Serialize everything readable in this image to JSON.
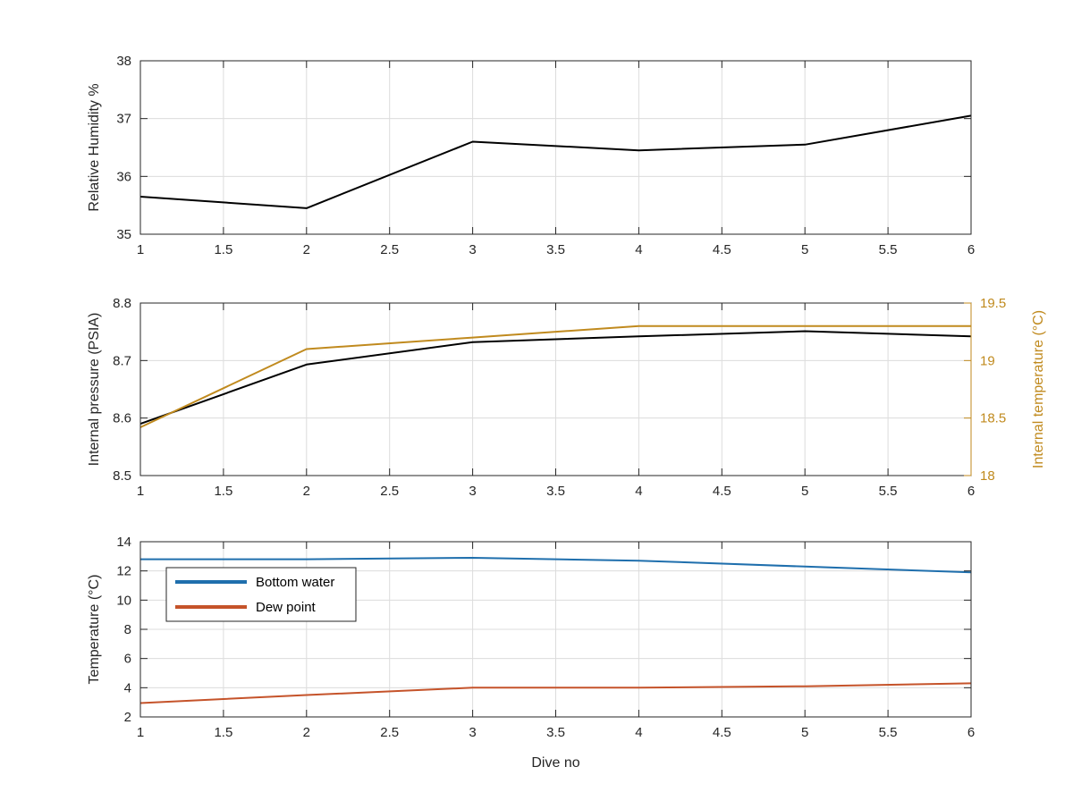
{
  "chart_data": [
    {
      "type": "line",
      "title": "",
      "xlabel": "",
      "ylabel": "Relative Humidity %",
      "xlim": [
        1,
        6
      ],
      "ylim": [
        35,
        38
      ],
      "xticks": [
        1,
        1.5,
        2,
        2.5,
        3,
        3.5,
        4,
        4.5,
        5,
        5.5,
        6
      ],
      "yticks": [
        35,
        36,
        37,
        38
      ],
      "grid": true,
      "series": [
        {
          "color": "#000000",
          "x": [
            1,
            2,
            3,
            4,
            5,
            6
          ],
          "values": [
            35.65,
            35.45,
            36.6,
            36.45,
            36.55,
            37.05
          ]
        }
      ]
    },
    {
      "type": "line",
      "title": "",
      "xlabel": "",
      "ylabel": "Internal pressure (PSIA)",
      "y2label": "Internal temperature (°C)",
      "xlim": [
        1,
        6
      ],
      "ylim": [
        8.5,
        8.8
      ],
      "y2lim": [
        18,
        19.5
      ],
      "xticks": [
        1,
        1.5,
        2,
        2.5,
        3,
        3.5,
        4,
        4.5,
        5,
        5.5,
        6
      ],
      "yticks": [
        8.5,
        8.6,
        8.7,
        8.8
      ],
      "y2ticks": [
        18,
        18.5,
        19,
        19.5
      ],
      "grid": true,
      "series": [
        {
          "axis": "left",
          "color": "#000000",
          "x": [
            1,
            2,
            3,
            4,
            5,
            6
          ],
          "values": [
            8.59,
            8.693,
            8.732,
            8.742,
            8.751,
            8.742
          ]
        },
        {
          "axis": "right",
          "color": "#c08a1e",
          "x": [
            1,
            2,
            3,
            4,
            5,
            6
          ],
          "values": [
            18.42,
            19.1,
            19.2,
            19.3,
            19.3,
            19.3
          ]
        }
      ]
    },
    {
      "type": "line",
      "title": "",
      "xlabel": "Dive no",
      "ylabel": "Temperature (°C)",
      "xlim": [
        1,
        6
      ],
      "ylim": [
        2,
        14
      ],
      "xticks": [
        1,
        1.5,
        2,
        2.5,
        3,
        3.5,
        4,
        4.5,
        5,
        5.5,
        6
      ],
      "yticks": [
        2,
        4,
        6,
        8,
        10,
        12,
        14
      ],
      "grid": true,
      "legend": "top-left",
      "series": [
        {
          "name": "Bottom water",
          "color": "#1f6fad",
          "x": [
            1,
            2,
            3,
            4,
            5,
            6
          ],
          "values": [
            12.8,
            12.8,
            12.9,
            12.7,
            12.3,
            11.9
          ]
        },
        {
          "name": "Dew point",
          "color": "#c5532a",
          "x": [
            1,
            2,
            3,
            4,
            5,
            6
          ],
          "values": [
            2.95,
            3.5,
            4.0,
            4.0,
            4.1,
            4.3
          ]
        }
      ]
    }
  ]
}
